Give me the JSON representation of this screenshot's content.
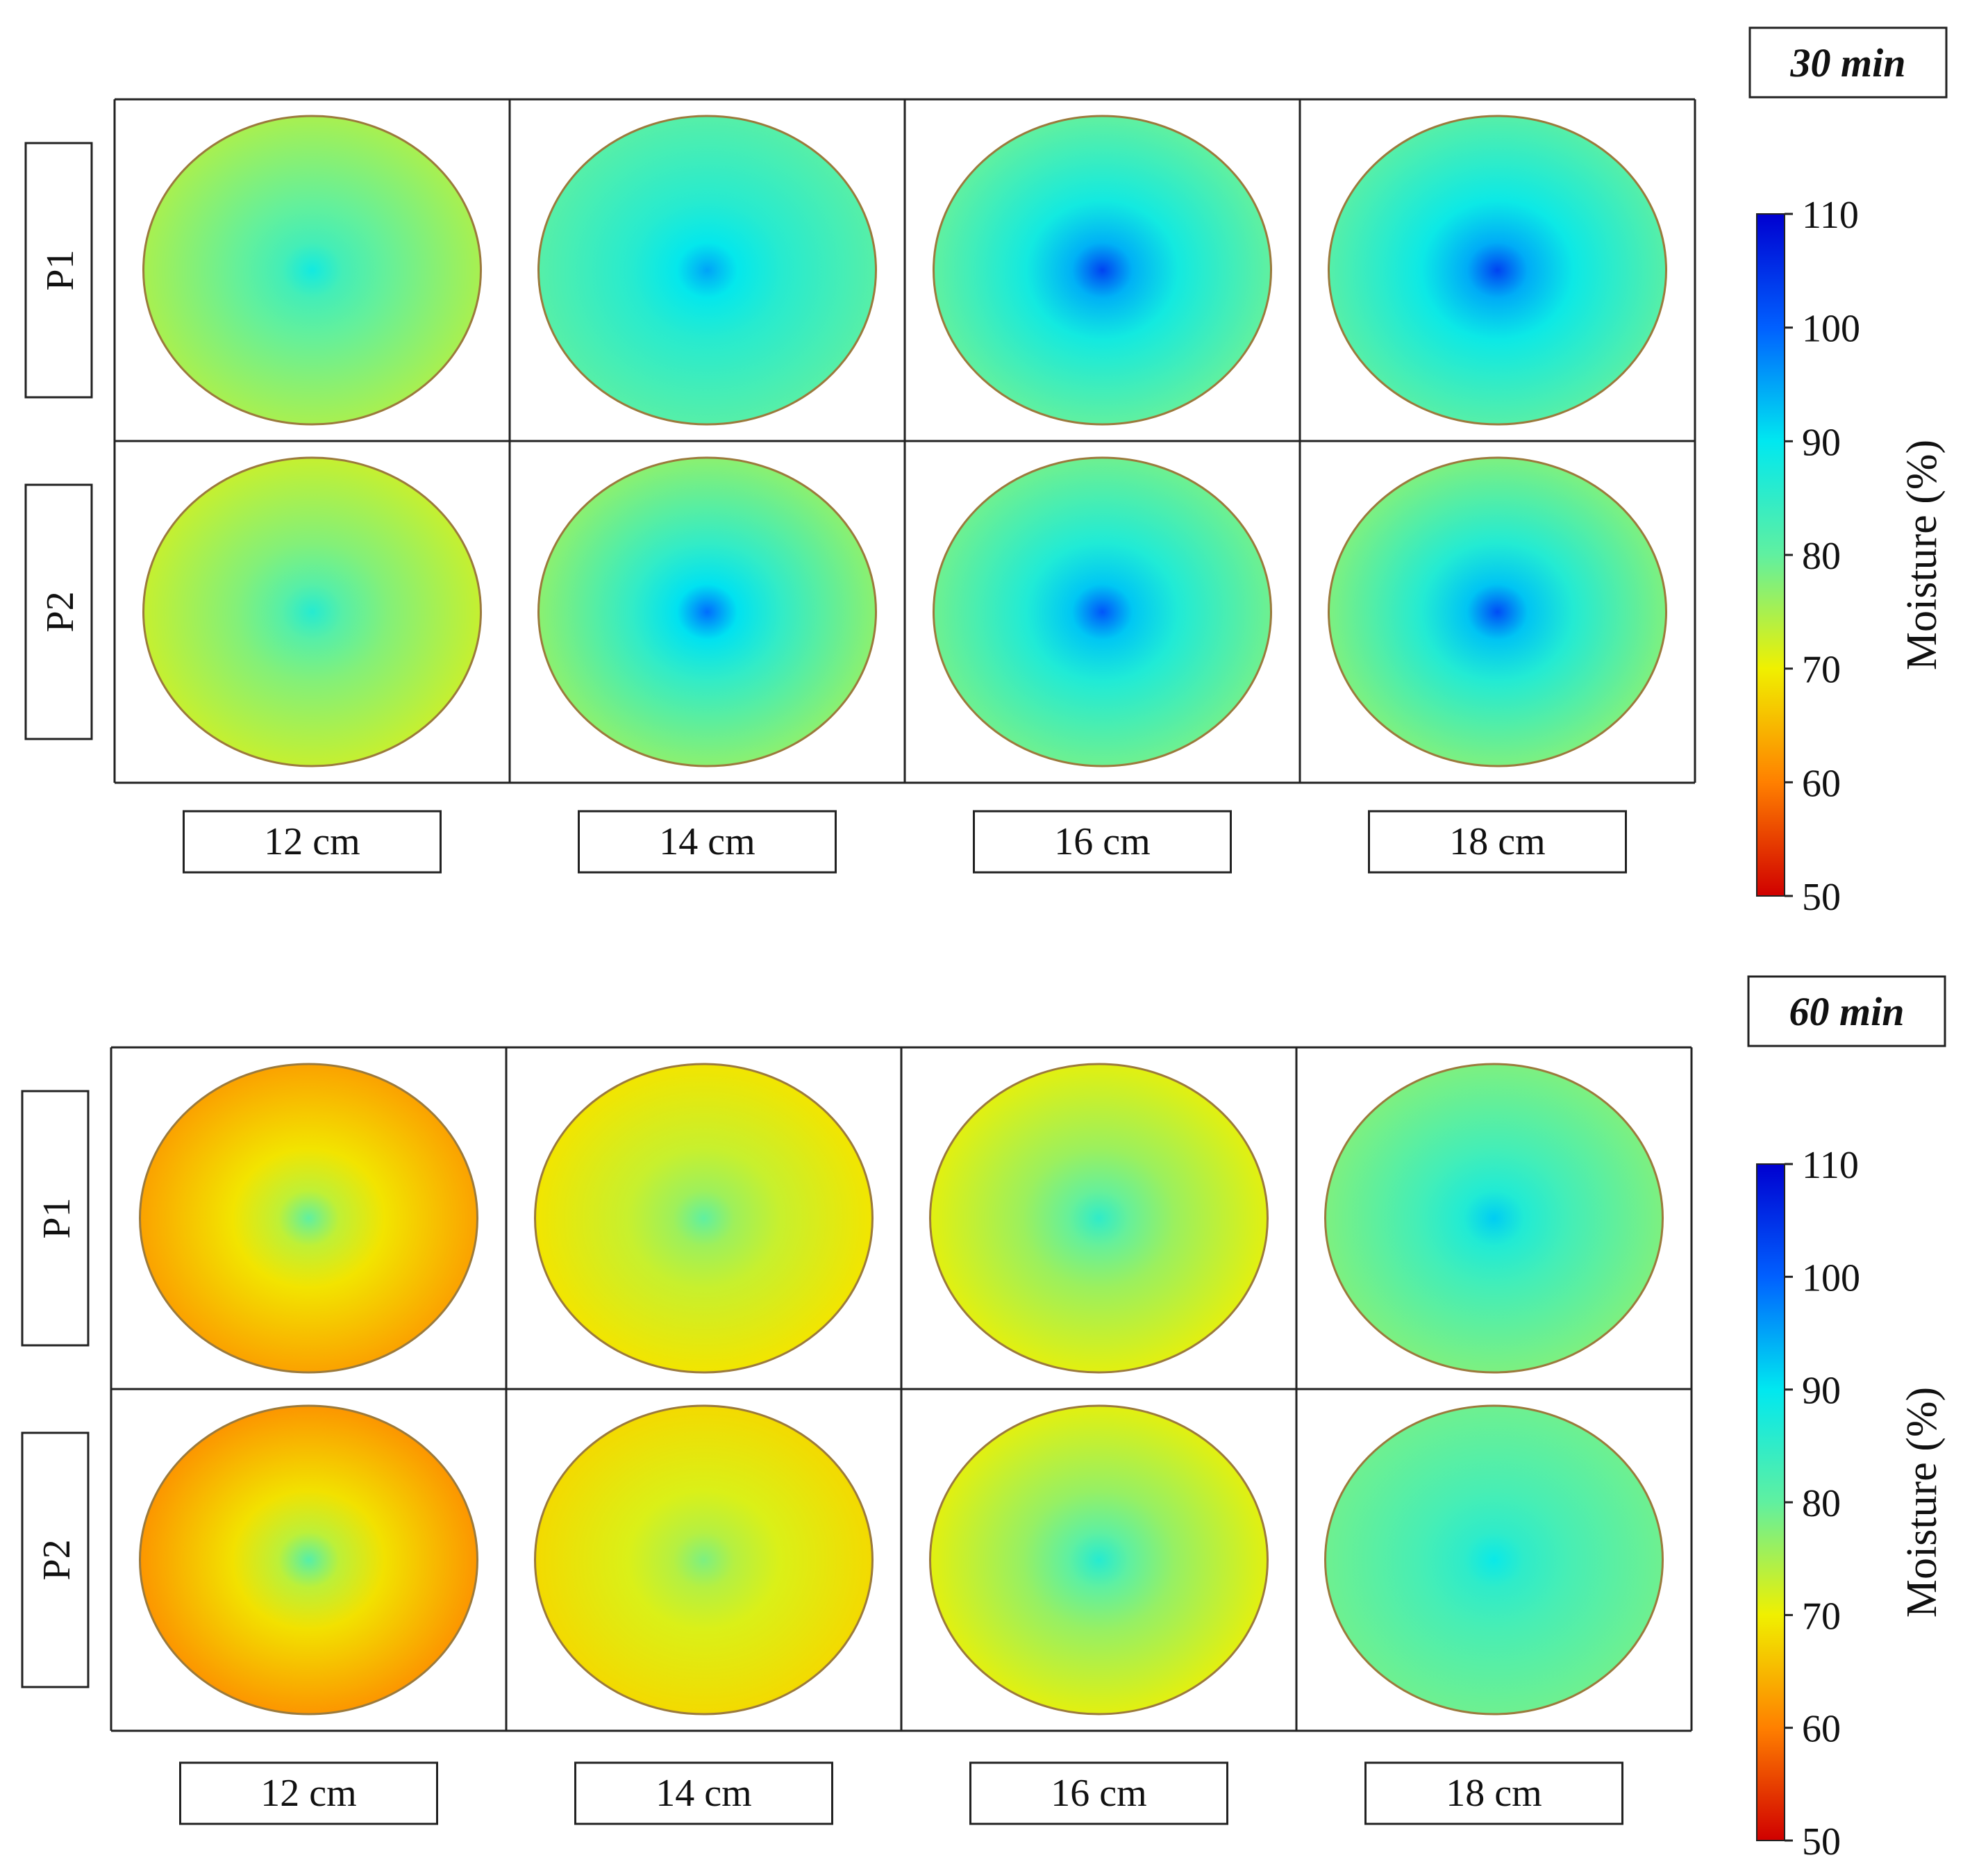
{
  "chart_data": {
    "type": "heatmap",
    "colorbar": {
      "label": "Moisture (%)",
      "min": 50,
      "max": 110,
      "ticks": [
        "110",
        "100",
        "90",
        "80",
        "70",
        "60",
        "50"
      ],
      "colormap": "jet",
      "colors": [
        "#0000d0",
        "#0060ff",
        "#00e8f0",
        "#60f0a0",
        "#f0f000",
        "#ff8000",
        "#d00000"
      ]
    },
    "panels": [
      {
        "time_label": "30 min",
        "rows": [
          "P1",
          "P2"
        ],
        "columns": [
          "12 cm",
          "14 cm",
          "16 cm",
          "18 cm"
        ],
        "center_moisture": [
          [
            88,
            95,
            103,
            103
          ],
          [
            86,
            99,
            101,
            102
          ]
        ],
        "edge_moisture": [
          [
            75,
            81,
            80,
            81
          ],
          [
            73,
            77,
            79,
            78
          ]
        ]
      },
      {
        "time_label": "60 min",
        "rows": [
          "P1",
          "P2"
        ],
        "columns": [
          "12 cm",
          "14 cm",
          "16 cm",
          "18 cm"
        ],
        "center_moisture": [
          [
            80,
            80,
            85,
            92
          ],
          [
            81,
            78,
            86,
            89
          ]
        ],
        "edge_moisture": [
          [
            63,
            69,
            71,
            78
          ],
          [
            62,
            68,
            71,
            79
          ]
        ]
      }
    ]
  }
}
